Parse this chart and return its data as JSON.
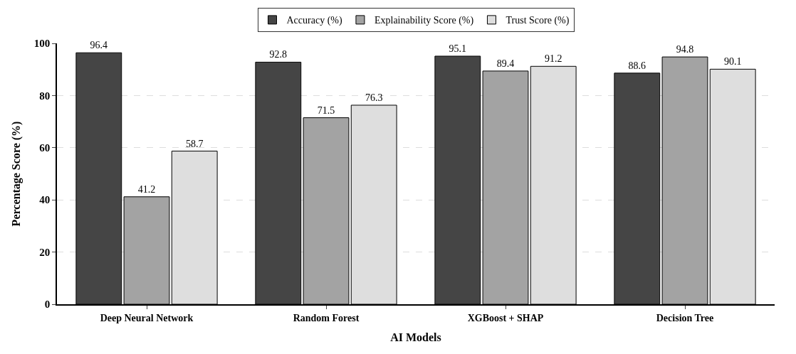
{
  "chart_data": {
    "type": "bar",
    "xlabel": "AI Models",
    "ylabel": "Percentage Score (%)",
    "categories": [
      "Deep Neural Network",
      "Random Forest",
      "XGBoost + SHAP",
      "Decision Tree"
    ],
    "series": [
      {
        "name": "Accuracy (%)",
        "color": "#454545",
        "values": [
          96.4,
          92.8,
          95.1,
          88.6
        ]
      },
      {
        "name": "Explainability Score (%)",
        "color": "#a3a3a3",
        "values": [
          41.2,
          71.5,
          89.4,
          94.8
        ]
      },
      {
        "name": "Trust Score (%)",
        "color": "#dedede",
        "values": [
          58.7,
          76.3,
          91.2,
          90.1
        ]
      }
    ],
    "ylim": [
      0,
      100
    ],
    "yticks": [
      0,
      20,
      40,
      60,
      80,
      100
    ],
    "grid": "y",
    "legend": "top",
    "data_labels": true
  }
}
